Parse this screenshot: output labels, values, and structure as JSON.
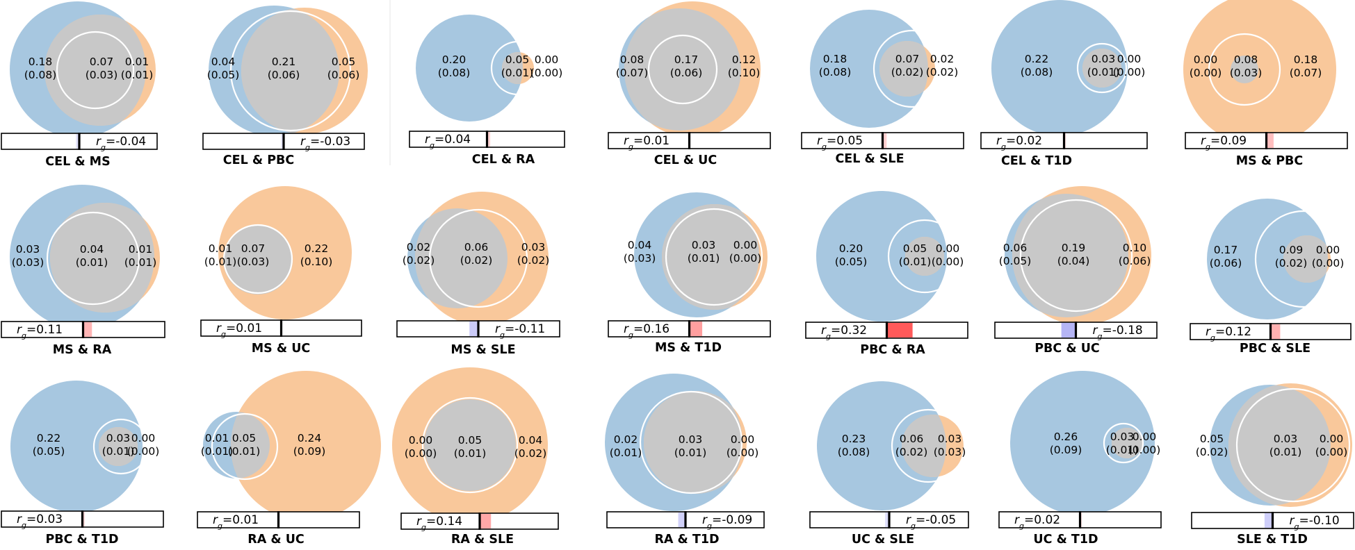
{
  "chart_data": {
    "type": "venn-grid",
    "description_units": "heritability estimates with standard errors",
    "colors": {
      "left": "#a7c7e0",
      "right": "#f9c89b",
      "overlap": "#c8c8c8",
      "outline": "#ffffff",
      "positive": "#ff5a5a",
      "negative": "#8c8cf0"
    },
    "rg_label": "r",
    "rg_sub": "g",
    "panels": [
      {
        "title": "CEL & MS",
        "left": "0.18",
        "left_se": "(0.08)",
        "mid": "0.07",
        "mid_se": "(0.03)",
        "right": "0.01",
        "right_se": "(0.01)",
        "rg": "-0.04",
        "rg_value": -0.04
      },
      {
        "title": "CEL & PBC",
        "left": "0.04",
        "left_se": "(0.05)",
        "mid": "0.21",
        "mid_se": "(0.06)",
        "right": "0.05",
        "right_se": "(0.06)",
        "rg": "-0.03",
        "rg_value": -0.03
      },
      {
        "title": "CEL & RA",
        "left": "0.20",
        "left_se": "(0.08)",
        "mid": "0.05",
        "mid_se": "(0.01)",
        "right": "0.00",
        "right_se": "(0.00)",
        "rg": "0.04",
        "rg_value": 0.04
      },
      {
        "title": "CEL & UC",
        "left": "0.08",
        "left_se": "(0.07)",
        "mid": "0.17",
        "mid_se": "(0.06)",
        "right": "0.12",
        "right_se": "(0.10)",
        "rg": "0.01",
        "rg_value": 0.01
      },
      {
        "title": "CEL & SLE",
        "left": "0.18",
        "left_se": "(0.08)",
        "mid": "0.07",
        "mid_se": "(0.02)",
        "right": "0.02",
        "right_se": "(0.02)",
        "rg": "0.05",
        "rg_value": 0.05
      },
      {
        "title": "CEL & T1D",
        "left": "0.22",
        "left_se": "(0.08)",
        "mid": "0.03",
        "mid_se": "(0.01)",
        "right": "0.00",
        "right_se": "(0.00)",
        "rg": "0.02",
        "rg_value": 0.02
      },
      {
        "title": "MS & PBC",
        "left": "0.00",
        "left_se": "(0.00)",
        "mid": "0.08",
        "mid_se": "(0.03)",
        "right": "0.18",
        "right_se": "(0.07)",
        "rg": "0.09",
        "rg_value": 0.09
      },
      {
        "title": "MS & RA",
        "left": "0.03",
        "left_se": "(0.03)",
        "mid": "0.04",
        "mid_se": "(0.01)",
        "right": "0.01",
        "right_se": "(0.01)",
        "rg": "0.11",
        "rg_value": 0.11
      },
      {
        "title": "MS & UC",
        "left": "0.01",
        "left_se": "(0.01)",
        "mid": "0.07",
        "mid_se": "(0.03)",
        "right": "0.22",
        "right_se": "(0.10)",
        "rg": "0.01",
        "rg_value": 0.01
      },
      {
        "title": "MS & SLE",
        "left": "0.02",
        "left_se": "(0.02)",
        "mid": "0.06",
        "mid_se": "(0.02)",
        "right": "0.03",
        "right_se": "(0.02)",
        "rg": "-0.11",
        "rg_value": -0.11
      },
      {
        "title": "MS & T1D",
        "left": "0.04",
        "left_se": "(0.03)",
        "mid": "0.03",
        "mid_se": "(0.01)",
        "right": "0.00",
        "right_se": "(0.00)",
        "rg": "0.16",
        "rg_value": 0.16
      },
      {
        "title": "PBC & RA",
        "left": "0.20",
        "left_se": "(0.05)",
        "mid": "0.05",
        "mid_se": "(0.01)",
        "right": "0.00",
        "right_se": "(0.00)",
        "rg": "0.32",
        "rg_value": 0.32
      },
      {
        "title": "PBC & UC",
        "left": "0.06",
        "left_se": "(0.05)",
        "mid": "0.19",
        "mid_se": "(0.04)",
        "right": "0.10",
        "right_se": "(0.06)",
        "rg": "-0.18",
        "rg_value": -0.18
      },
      {
        "title": "PBC & SLE",
        "left": "0.17",
        "left_se": "(0.06)",
        "mid": "0.09",
        "mid_se": "(0.02)",
        "right": "0.00",
        "right_se": "(0.00)",
        "rg": "0.12",
        "rg_value": 0.12
      },
      {
        "title": "PBC & T1D",
        "left": "0.22",
        "left_se": "(0.05)",
        "mid": "0.03",
        "mid_se": "(0.01)",
        "right": "0.00",
        "right_se": "(0.00)",
        "rg": "0.03",
        "rg_value": 0.03
      },
      {
        "title": "RA & UC",
        "left": "0.01",
        "left_se": "(0.01)",
        "mid": "0.05",
        "mid_se": "(0.01)",
        "right": "0.24",
        "right_se": "(0.09)",
        "rg": "0.01",
        "rg_value": 0.01
      },
      {
        "title": "RA & SLE",
        "left": "0.00",
        "left_se": "(0.00)",
        "mid": "0.05",
        "mid_se": "(0.01)",
        "right": "0.04",
        "right_se": "(0.02)",
        "rg": "0.14",
        "rg_value": 0.14
      },
      {
        "title": "RA & T1D",
        "left": "0.02",
        "left_se": "(0.01)",
        "mid": "0.03",
        "mid_se": "(0.01)",
        "right": "0.00",
        "right_se": "(0.00)",
        "rg": "-0.09",
        "rg_value": -0.09
      },
      {
        "title": "UC & SLE",
        "left": "0.23",
        "left_se": "(0.08)",
        "mid": "0.06",
        "mid_se": "(0.02)",
        "right": "0.03",
        "right_se": "(0.03)",
        "rg": "-0.05",
        "rg_value": -0.05
      },
      {
        "title": "UC & T1D",
        "left": "0.26",
        "left_se": "(0.09)",
        "mid": "0.03",
        "mid_se": "(0.01)",
        "right": "0.00",
        "right_se": "(0.00)",
        "rg": "0.02",
        "rg_value": 0.02
      },
      {
        "title": "SLE & T1D",
        "left": "0.05",
        "left_se": "(0.02)",
        "mid": "0.03",
        "mid_se": "(0.01)",
        "right": "0.00",
        "right_se": "(0.00)",
        "rg": "-0.10",
        "rg_value": -0.1
      }
    ]
  }
}
